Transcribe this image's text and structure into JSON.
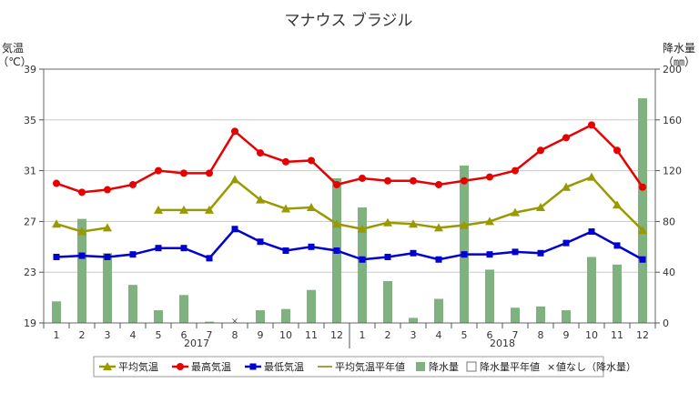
{
  "chart_data": {
    "type": "bar+line",
    "title": "マナウス ブラジル",
    "y_left": {
      "label_line1": "気温",
      "label_line2": "（℃）",
      "min": 19,
      "max": 39,
      "ticks": [
        "39",
        "35",
        "31",
        "27",
        "23",
        "19"
      ]
    },
    "y_right": {
      "label_line1": "降水量",
      "label_line2": "（㎜）",
      "min": 0,
      "max": 200,
      "ticks": [
        "200",
        "160",
        "120",
        "80",
        "40",
        "0"
      ]
    },
    "months": [
      "1",
      "2",
      "3",
      "4",
      "5",
      "6",
      "7",
      "8",
      "9",
      "10",
      "11",
      "12",
      "1",
      "2",
      "3",
      "4",
      "5",
      "6",
      "7",
      "8",
      "9",
      "10",
      "11",
      "12"
    ],
    "years": [
      "2017",
      "2018"
    ],
    "grid": true,
    "series": {
      "avg_temp": {
        "name": "平均気温",
        "color": "#999900",
        "values": [
          26.8,
          26.2,
          26.5,
          null,
          27.9,
          27.9,
          27.9,
          30.3,
          28.7,
          28.0,
          28.1,
          26.8,
          26.4,
          26.9,
          26.8,
          26.5,
          26.7,
          27.0,
          27.7,
          28.1,
          29.7,
          30.5,
          28.3,
          26.3
        ]
      },
      "max_temp": {
        "name": "最高気温",
        "color": "#e60000",
        "values": [
          30.0,
          29.3,
          29.5,
          29.9,
          31.0,
          30.8,
          30.8,
          34.1,
          32.4,
          31.7,
          31.8,
          29.9,
          30.4,
          30.2,
          30.2,
          29.9,
          30.2,
          30.5,
          31.0,
          32.6,
          33.6,
          34.6,
          32.6,
          29.7
        ]
      },
      "min_temp": {
        "name": "最低気温",
        "color": "#0000d0",
        "values": [
          24.2,
          24.3,
          24.2,
          24.4,
          24.9,
          24.9,
          24.1,
          26.4,
          25.4,
          24.7,
          25.0,
          24.7,
          24.0,
          24.2,
          24.5,
          24.0,
          24.4,
          24.4,
          24.6,
          24.5,
          25.3,
          26.2,
          25.1,
          24.0
        ]
      },
      "avg_temp_normal": {
        "name": "平均気温平年値",
        "color": "#808000"
      },
      "precip": {
        "name": "降水量",
        "color": "#7fb27f",
        "values": [
          17,
          82,
          55,
          30,
          10,
          22,
          1,
          null,
          10,
          11,
          26,
          114,
          91,
          33,
          4,
          19,
          124,
          42,
          12,
          13,
          10,
          52,
          46,
          177
        ]
      },
      "precip_normal": {
        "name": "降水量平年値"
      },
      "missing": {
        "name": "値なし（降水量）",
        "symbol": "×"
      }
    }
  }
}
